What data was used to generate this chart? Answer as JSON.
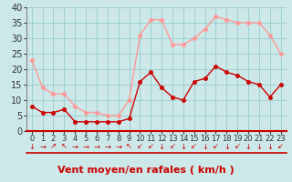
{
  "hours": [
    0,
    1,
    2,
    3,
    4,
    5,
    6,
    7,
    8,
    9,
    10,
    11,
    12,
    13,
    14,
    15,
    16,
    17,
    18,
    19,
    20,
    21,
    22,
    23
  ],
  "wind_avg": [
    8,
    6,
    6,
    7,
    3,
    3,
    3,
    3,
    3,
    4,
    16,
    19,
    14,
    11,
    10,
    16,
    17,
    21,
    19,
    18,
    16,
    15,
    11,
    15
  ],
  "wind_gust": [
    23,
    14,
    12,
    12,
    8,
    6,
    6,
    5,
    5,
    10,
    31,
    36,
    36,
    28,
    28,
    30,
    33,
    37,
    36,
    35,
    35,
    35,
    31,
    25
  ],
  "avg_color": "#cc0000",
  "gust_color": "#ff9999",
  "bg_color": "#cce8e8",
  "grid_color": "#99cccc",
  "xlabel": "Vent moyen/en rafales ( km/h )",
  "xlabel_color": "#cc0000",
  "ylim": [
    0,
    40
  ],
  "yticks": [
    0,
    5,
    10,
    15,
    20,
    25,
    30,
    35,
    40
  ],
  "tick_fontsize": 7,
  "line_width": 1.0,
  "marker_size": 2.5,
  "wind_directions": [
    "↓",
    "→",
    "↗",
    "↖",
    "→",
    "→",
    "→",
    "→",
    "→",
    "↖",
    "↙",
    "↙",
    "↓",
    "↙",
    "↓",
    "↙",
    "↓",
    "↙",
    "↓",
    "↙",
    "↓",
    "↓",
    "↓",
    "↙"
  ]
}
